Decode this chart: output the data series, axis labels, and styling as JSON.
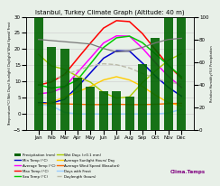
{
  "title": "Istanbul, Turkey Climate Graph (Altitude: 40 m)",
  "months": [
    "Jan",
    "Feb",
    "Mar",
    "Apr",
    "May",
    "Jun",
    "Jul",
    "Aug",
    "Sep",
    "Oct",
    "Nov",
    "Dec"
  ],
  "precipitation": [
    109,
    73,
    72,
    46,
    38,
    34,
    34,
    30,
    58,
    81,
    103,
    119
  ],
  "max_temp": [
    8.9,
    9.9,
    12.2,
    17.1,
    21.9,
    26.5,
    28.8,
    28.5,
    24.8,
    19.8,
    15.0,
    11.0
  ],
  "min_temp": [
    3.5,
    3.4,
    4.5,
    8.4,
    12.7,
    17.2,
    19.5,
    19.4,
    15.7,
    11.7,
    8.2,
    5.5
  ],
  "avg_temp": [
    6.2,
    6.7,
    8.3,
    12.8,
    17.3,
    21.9,
    24.1,
    24.0,
    20.3,
    15.8,
    11.6,
    8.2
  ],
  "sea_temp": [
    9.0,
    8.0,
    8.5,
    10.5,
    15.5,
    20.5,
    23.5,
    24.0,
    22.0,
    18.5,
    15.0,
    11.5
  ],
  "wet_days": [
    18.4,
    14.8,
    13.8,
    11.6,
    9.8,
    6.6,
    4.9,
    5.3,
    9.7,
    13.3,
    16.6,
    18.6
  ],
  "sunlight_hours": [
    2.7,
    3.7,
    5.2,
    6.8,
    8.5,
    10.5,
    11.5,
    10.5,
    8.5,
    5.8,
    3.5,
    2.5
  ],
  "wind_speed": [
    3.2,
    3.2,
    3.1,
    3.0,
    2.9,
    2.9,
    3.0,
    2.9,
    2.9,
    3.0,
    3.2,
    3.3
  ],
  "frost_days": [
    3.0,
    2.5,
    0.5,
    0.0,
    0.0,
    0.0,
    0.0,
    0.0,
    0.0,
    0.0,
    0.3,
    1.5
  ],
  "daylength": [
    9.5,
    10.5,
    12.0,
    13.5,
    14.8,
    15.5,
    15.2,
    14.2,
    12.5,
    11.0,
    9.8,
    9.2
  ],
  "humidity": [
    80,
    79,
    78,
    77,
    76,
    72,
    69,
    70,
    73,
    77,
    80,
    81
  ],
  "bar_color": "#006400",
  "max_temp_color": "#ff0000",
  "min_temp_color": "#0000cd",
  "avg_temp_color": "#ff00ff",
  "sea_temp_color": "#00cc00",
  "wet_days_color": "#aacc00",
  "sunlight_color": "#ffcc00",
  "wind_color": "#ff6600",
  "frost_color": "#99ccff",
  "daylength_color": "#bbbbaa",
  "humidity_color": "#777777",
  "ylim_left": [
    -5,
    30
  ],
  "ylim_right": [
    0,
    100
  ],
  "background_color": "#e8f0e8",
  "grid_color": "#cccccc"
}
